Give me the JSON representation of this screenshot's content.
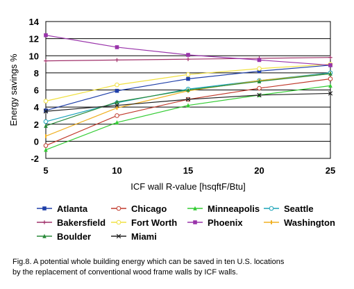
{
  "chart_data": {
    "type": "line",
    "title": "",
    "xlabel": "ICF wall R-value [hsqftF/Btu]",
    "ylabel": "Energy savings %",
    "x": [
      5,
      10,
      15,
      20,
      25
    ],
    "xlim": [
      5,
      25
    ],
    "ylim": [
      -2,
      14
    ],
    "yticks": [
      -2,
      0,
      2,
      4,
      6,
      8,
      10,
      12,
      14
    ],
    "grid": "horizontal",
    "legend_position": "bottom",
    "series": [
      {
        "name": "Atlanta",
        "color": "#1f3fa8",
        "marker": "square",
        "values": [
          3.6,
          5.9,
          7.3,
          8.2,
          8.9
        ]
      },
      {
        "name": "Chicago",
        "color": "#c0392b",
        "marker": "circle",
        "values": [
          -0.5,
          3.0,
          4.9,
          6.2,
          7.3
        ]
      },
      {
        "name": "Minneapolis",
        "color": "#33cc33",
        "marker": "triangle",
        "values": [
          -1.0,
          2.2,
          4.2,
          5.4,
          6.5
        ]
      },
      {
        "name": "Seattle",
        "color": "#1aa3b8",
        "marker": "circle",
        "values": [
          2.3,
          4.5,
          6.1,
          7.1,
          8.0
        ]
      },
      {
        "name": "Bakersfield",
        "color": "#a0306a",
        "marker": "plus",
        "values": [
          9.4,
          9.5,
          9.6,
          9.7,
          9.8
        ]
      },
      {
        "name": "Fort Worth",
        "color": "#f0e040",
        "marker": "circle",
        "values": [
          4.7,
          6.6,
          7.8,
          8.5,
          9.0
        ]
      },
      {
        "name": "Phoenix",
        "color": "#9933aa",
        "marker": "square",
        "values": [
          12.4,
          11.0,
          10.1,
          9.5,
          8.9
        ]
      },
      {
        "name": "Washington",
        "color": "#f0b020",
        "marker": "bar",
        "values": [
          0.6,
          3.9,
          5.9,
          7.1,
          7.9
        ]
      },
      {
        "name": "Boulder",
        "color": "#2a8a3a",
        "marker": "triangle",
        "values": [
          1.8,
          4.6,
          6.0,
          7.0,
          7.9
        ]
      },
      {
        "name": "Miami",
        "color": "#222222",
        "marker": "x",
        "values": [
          3.5,
          4.2,
          4.9,
          5.4,
          5.6
        ]
      }
    ]
  },
  "caption": {
    "line1": "Fig.8. A potential whole building energy which can be saved  in ten U.S. locations",
    "line2": "by the replacement of conventional wood frame walls by ICF walls."
  }
}
